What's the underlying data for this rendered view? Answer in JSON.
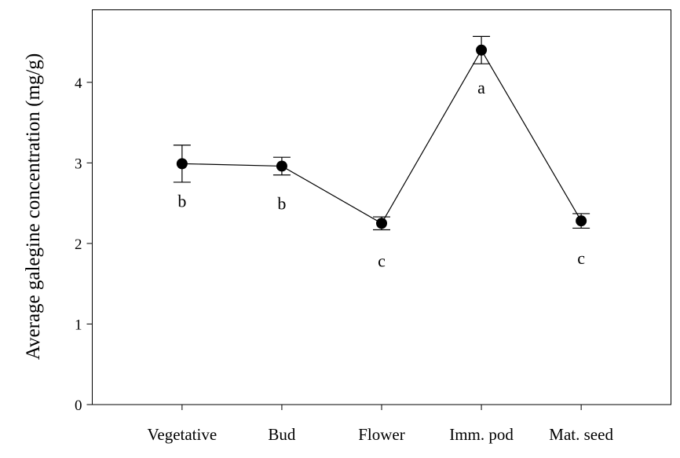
{
  "chart_data": {
    "type": "line",
    "y_label": "Average galegine concentration (mg/g)",
    "categories": [
      "Vegetative",
      "Bud",
      "Flower",
      "Imm. pod",
      "Mat. seed"
    ],
    "values": [
      2.99,
      2.96,
      2.25,
      4.4,
      2.28
    ],
    "errors": [
      0.23,
      0.11,
      0.08,
      0.17,
      0.09
    ],
    "annotations": [
      "b",
      "b",
      "c",
      "a",
      "c"
    ],
    "color": "#000000",
    "ylim": [
      0,
      4.9
    ],
    "yticks": [
      0,
      1,
      2,
      3,
      4
    ]
  }
}
